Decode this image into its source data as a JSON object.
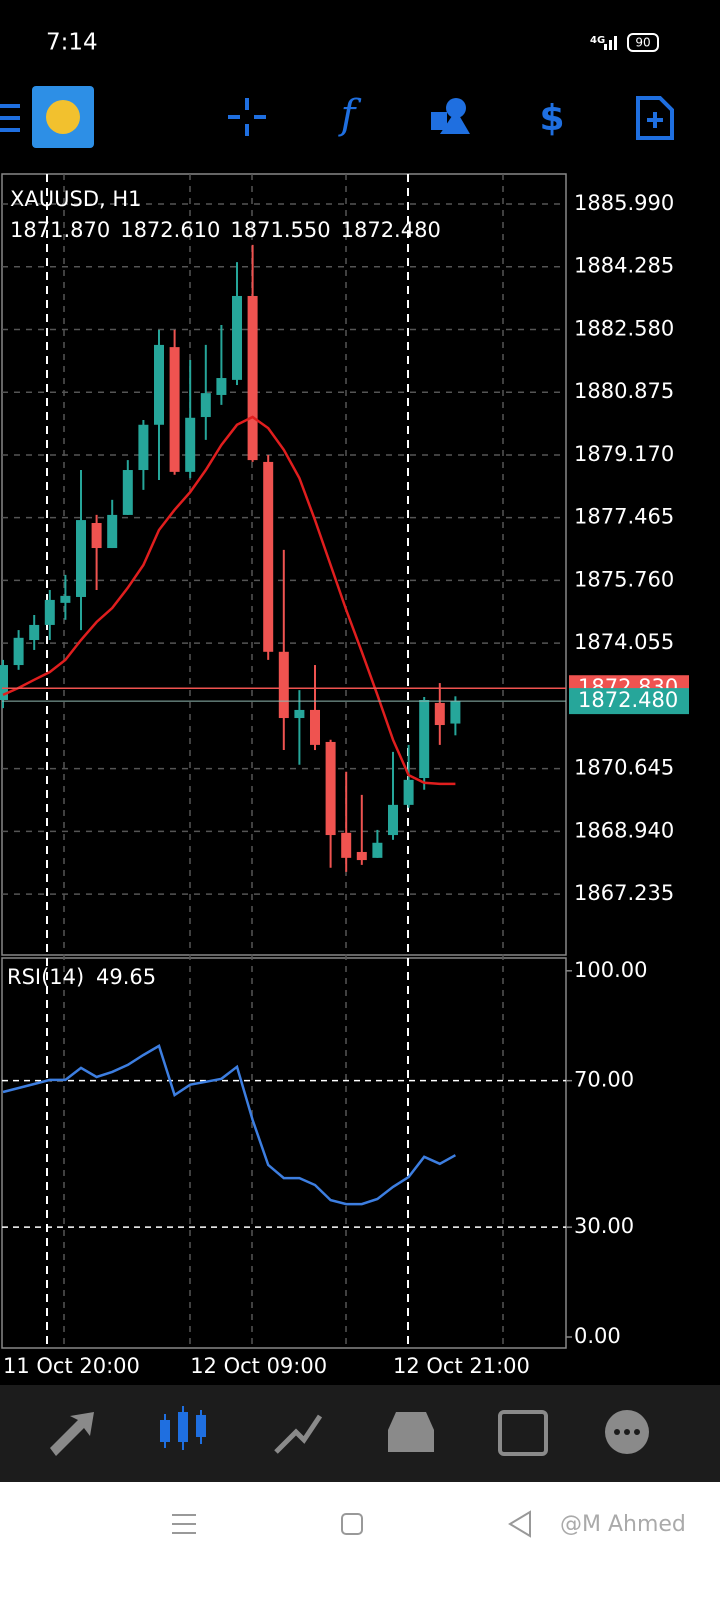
{
  "status_bar": {
    "time": "7:14",
    "network": "4G",
    "battery": "90"
  },
  "chart_data": [
    {
      "type": "candlestick",
      "title": "XAUUSD, H1",
      "ohlc_labels": [
        "1871.870",
        "1872.610",
        "1871.550",
        "1872.480"
      ],
      "categories": [
        "11 Oct 20:00",
        null,
        null,
        null,
        null,
        null,
        null,
        null,
        null,
        null,
        null,
        null,
        "12 Oct 09:00",
        null,
        null,
        null,
        null,
        null,
        null,
        null,
        null,
        null,
        null,
        null,
        null,
        "12 Oct 21:00",
        null,
        null,
        null,
        null
      ],
      "open": [
        1872.51,
        1873.46,
        1874.14,
        1874.55,
        1875.15,
        1875.31,
        1877.32,
        1876.64,
        1877.54,
        1878.76,
        1879.99,
        1882.1,
        1878.71,
        1880.2,
        1880.8,
        1881.21,
        1883.49,
        1878.98,
        1873.82,
        1872.02,
        1872.24,
        1871.37,
        1868.9,
        1868.38,
        1868.22,
        1868.84,
        1869.66,
        1870.39,
        1872.43,
        1871.87
      ],
      "high": [
        1873.6,
        1874.41,
        1874.82,
        1875.5,
        1875.91,
        1878.76,
        1877.54,
        1877.95,
        1879.03,
        1880.12,
        1882.57,
        1882.57,
        1881.75,
        1882.16,
        1882.7,
        1884.41,
        1884.88,
        1879.17,
        1876.59,
        1872.78,
        1873.46,
        1871.43,
        1870.56,
        1869.93,
        1868.98,
        1871.1,
        1871.29,
        1872.59,
        1872.97,
        1872.61
      ],
      "low": [
        1872.29,
        1873.33,
        1873.87,
        1874.14,
        1874.69,
        1874.41,
        1875.5,
        1876.64,
        1877.54,
        1878.22,
        1878.49,
        1878.63,
        1878.54,
        1879.58,
        1880.53,
        1881.07,
        1878.98,
        1873.6,
        1871.15,
        1870.75,
        1871.15,
        1867.95,
        1867.84,
        1868.03,
        1868.22,
        1868.71,
        1869.58,
        1870.07,
        1871.29,
        1871.55
      ],
      "close": [
        1873.46,
        1874.2,
        1874.55,
        1875.23,
        1875.34,
        1877.4,
        1876.64,
        1877.54,
        1878.76,
        1879.99,
        1882.16,
        1878.71,
        1880.18,
        1880.85,
        1881.26,
        1883.49,
        1879.03,
        1873.82,
        1872.02,
        1872.24,
        1871.29,
        1868.84,
        1868.22,
        1868.16,
        1868.63,
        1869.66,
        1870.34,
        1872.51,
        1871.83,
        1872.48
      ],
      "up_color": "#26a69a",
      "down_color": "#ef5350",
      "series": [
        {
          "color": "#e01e1e",
          "values": [
            1872.65,
            1872.84,
            1873.06,
            1873.27,
            1873.6,
            1874.14,
            1874.63,
            1875.01,
            1875.56,
            1876.18,
            1877.13,
            1877.68,
            1878.16,
            1878.76,
            1879.44,
            1879.99,
            1880.2,
            1879.9,
            1879.31,
            1878.54,
            1877.4,
            1876.18,
            1874.96,
            1873.82,
            1872.65,
            1871.43,
            1870.47,
            1870.26,
            1870.23,
            1870.23
          ]
        }
      ],
      "bid": 1872.48,
      "bid_label": "1872.480",
      "ask": 1872.83,
      "ask_label": "1872.830",
      "ylim": [
        1865.58,
        1886.805
      ],
      "yticks": [
        {
          "value": 1885.99,
          "label": "1885.990"
        },
        {
          "value": 1884.285,
          "label": "1884.285"
        },
        {
          "value": 1882.58,
          "label": "1882.580"
        },
        {
          "value": 1880.875,
          "label": "1880.875"
        },
        {
          "value": 1879.17,
          "label": "1879.170"
        },
        {
          "value": 1877.465,
          "label": "1877.465"
        },
        {
          "value": 1875.76,
          "label": "1875.760"
        },
        {
          "value": 1874.055,
          "label": "1874.055"
        },
        {
          "value": 1870.645,
          "label": "1870.645"
        },
        {
          "value": 1868.94,
          "label": "1868.940"
        },
        {
          "value": 1867.235,
          "label": "1867.235"
        }
      ],
      "grid": true
    },
    {
      "type": "line",
      "title": "RSI(14)",
      "series": [
        {
          "color": "#3d7ee0",
          "values": [
            66.9,
            68.0,
            69.1,
            70.2,
            70.2,
            73.5,
            71.0,
            72.4,
            74.3,
            77.0,
            79.5,
            66.1,
            68.9,
            69.7,
            70.5,
            73.8,
            59.3,
            47.0,
            43.4,
            43.4,
            41.5,
            37.4,
            36.3,
            36.3,
            37.7,
            41.0,
            43.7,
            49.2,
            47.3,
            49.65
          ]
        }
      ],
      "ylim": [
        -3,
        103.5
      ],
      "yticks": [
        {
          "value": 100,
          "label": "100.00"
        },
        {
          "value": 70,
          "label": "70.00"
        },
        {
          "value": 30,
          "label": "30.00"
        },
        {
          "value": 0,
          "label": "0.00"
        }
      ],
      "levels": [
        70,
        30
      ]
    }
  ],
  "watermark": "@M Ahmed"
}
